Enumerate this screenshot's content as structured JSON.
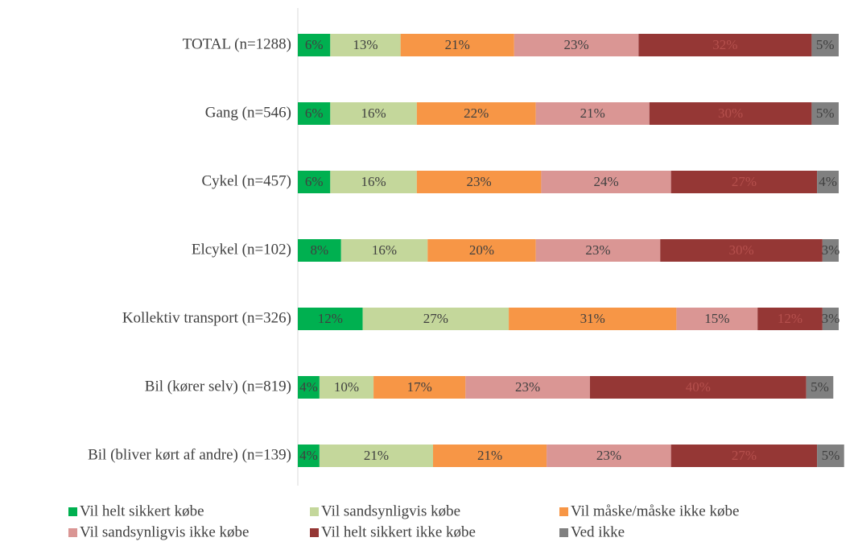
{
  "chart_data": {
    "type": "stacked-bar-horizontal",
    "categories": [
      "TOTAL (n=1288)",
      "Gang (n=546)",
      "Cykel (n=457)",
      "Elcykel (n=102)",
      "Kollektiv transport (n=326)",
      "Bil (kører selv) (n=819)",
      "Bil (bliver kørt af andre) (n=139)"
    ],
    "xlim": [
      0,
      100
    ],
    "series": [
      {
        "name": "Vil helt sikkert købe",
        "color": "#00b050",
        "values": [
          6,
          6,
          6,
          8,
          12,
          4,
          4
        ],
        "value_labels": [
          "6%",
          "6%",
          "6%",
          "8%",
          "12%",
          "4%",
          "4%"
        ]
      },
      {
        "name": "Vil sandsynligvis købe",
        "color": "#c4d79b",
        "values": [
          13,
          16,
          16,
          16,
          27,
          10,
          21
        ],
        "value_labels": [
          "13%",
          "16%",
          "16%",
          "16%",
          "27%",
          "10%",
          "21%"
        ]
      },
      {
        "name": "Vil måske/måske ikke købe",
        "color": "#f79646",
        "values": [
          21,
          22,
          23,
          20,
          31,
          17,
          21
        ],
        "value_labels": [
          "21%",
          "22%",
          "23%",
          "20%",
          "31%",
          "17%",
          "21%"
        ]
      },
      {
        "name": "Vil sandsynligvis ikke købe",
        "color": "#da9694",
        "values": [
          23,
          21,
          24,
          23,
          15,
          23,
          23
        ],
        "value_labels": [
          "23%",
          "21%",
          "24%",
          "23%",
          "15%",
          "23%",
          "23%"
        ]
      },
      {
        "name": "Vil helt sikkert ikke købe",
        "color": "#953735",
        "values": [
          32,
          30,
          27,
          30,
          12,
          40,
          27
        ],
        "value_labels": [
          "32%",
          "30%",
          "27%",
          "30%",
          "12%",
          "40%",
          "27%"
        ]
      },
      {
        "name": "Ved ikke",
        "color": "#808080",
        "values": [
          5,
          5,
          4,
          3,
          3,
          5,
          5
        ],
        "value_labels": [
          "5%",
          "5%",
          "4%",
          "3%",
          "3%",
          "5%",
          "5%"
        ]
      }
    ]
  }
}
